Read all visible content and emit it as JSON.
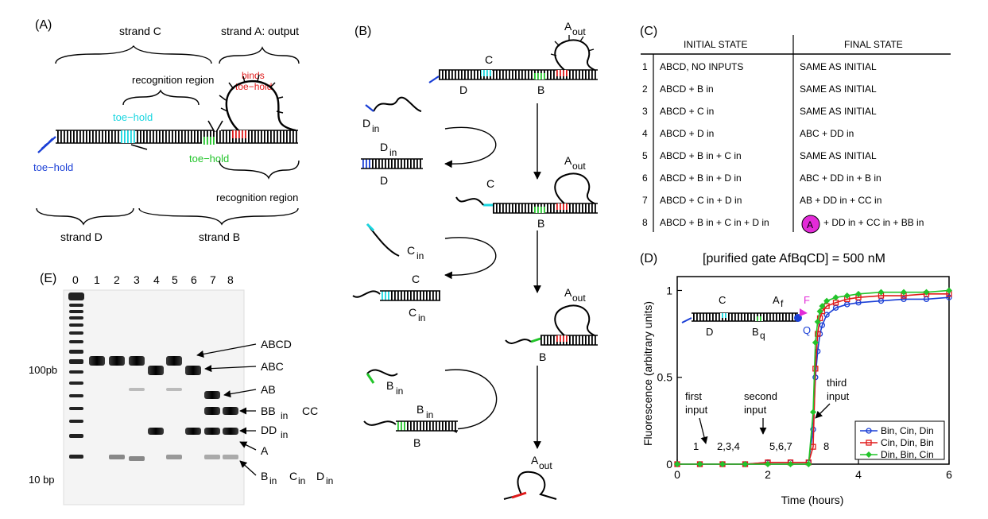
{
  "panel_a": {
    "label": "(A)",
    "strand_c": "strand C",
    "strand_a": "strand A: output",
    "recognition_top": "recognition region",
    "binds_toehold": [
      "binds",
      "toe−hold"
    ],
    "toehold_cyan": "toe−hold",
    "toehold_green": "toe−hold",
    "toehold_blue": "toe−hold",
    "recognition_bottom": "recognition region",
    "strand_d": "strand D",
    "strand_b": "strand B"
  },
  "panel_b": {
    "label": "(B)",
    "a_out": "A",
    "out_sub": "out",
    "c": "C",
    "d": "D",
    "b": "B",
    "d_in": "D",
    "c_in": "C",
    "b_in": "B",
    "in_sub": "in"
  },
  "panel_c": {
    "label": "(C)",
    "header_initial": "INITIAL STATE",
    "header_final": "FINAL STATE",
    "rows": [
      {
        "n": "1",
        "initial": "ABCD, NO INPUTS",
        "final": "SAME AS INITIAL"
      },
      {
        "n": "2",
        "initial": "ABCD  + B in",
        "final": "SAME AS INITIAL"
      },
      {
        "n": "3",
        "initial": "ABCD  + C in",
        "final": "SAME AS INITIAL"
      },
      {
        "n": "4",
        "initial": "ABCD  + D in",
        "final": "ABC  + DD in"
      },
      {
        "n": "5",
        "initial": "ABCD  + B in + C in",
        "final": "SAME AS INITIAL"
      },
      {
        "n": "6",
        "initial": "ABCD  + B in + D in",
        "final": "ABC  + DD in + B in"
      },
      {
        "n": "7",
        "initial": "ABCD  + C in + D in",
        "final": "AB    + DD in + CC in"
      },
      {
        "n": "8",
        "initial": "ABCD  + B in + C in + D in",
        "final": "+ DD in + CC in + BB in"
      }
    ],
    "circle_label": "A"
  },
  "panel_d": {
    "label": "(D)",
    "title": "[purified gate AfBqCD] = 500 nM",
    "gate_labels": {
      "c": "C",
      "a": "A",
      "a_sub": "f",
      "f": "F",
      "d": "D",
      "b": "B",
      "b_sub": "q",
      "q": "Q"
    },
    "annotations": {
      "first": [
        "first",
        "input"
      ],
      "second": [
        "second",
        "input"
      ],
      "third": [
        "third",
        "input"
      ],
      "n1": "1",
      "n234": "2,3,4",
      "n567": "5,6,7",
      "n8": "8"
    }
  },
  "panel_e": {
    "label": "(E)",
    "lanes": [
      "0",
      "1",
      "2",
      "3",
      "4",
      "5",
      "6",
      "7",
      "8"
    ],
    "marker_top": "100pb",
    "marker_bottom": "10 bp",
    "bands": [
      "ABCD",
      "ABC",
      "AB",
      "BB",
      "CC",
      "DD",
      "A",
      "B",
      "C",
      "D"
    ],
    "in_sub": "in"
  },
  "chart_data": {
    "type": "line",
    "title": "[purified gate AfBqCD] = 500 nM",
    "xlabel": "Time (hours)",
    "ylabel": "Fluorescence (arbitrary units)",
    "xlim": [
      0,
      6
    ],
    "ylim": [
      0,
      1.08
    ],
    "xticks": [
      0,
      2,
      4,
      6
    ],
    "yticks": [
      0,
      0.5,
      1
    ],
    "legend_position": "bottom-right",
    "series": [
      {
        "name": "Bin, Cin, Din",
        "color": "#1a3fd6",
        "marker": "circle",
        "x": [
          0,
          0.5,
          1,
          1.5,
          2,
          2.5,
          2.9,
          3.0,
          3.05,
          3.1,
          3.15,
          3.2,
          3.3,
          3.5,
          3.75,
          4,
          4.5,
          5,
          5.5,
          6
        ],
        "y": [
          0.0,
          0.0,
          0.0,
          0.0,
          0.01,
          0.01,
          0.01,
          0.2,
          0.5,
          0.65,
          0.75,
          0.8,
          0.86,
          0.9,
          0.92,
          0.93,
          0.94,
          0.95,
          0.95,
          0.96
        ]
      },
      {
        "name": "Cin, Din, Bin",
        "color": "#e01a1a",
        "marker": "square",
        "x": [
          0,
          0.5,
          1,
          1.5,
          2,
          2.5,
          2.9,
          3.0,
          3.05,
          3.1,
          3.15,
          3.2,
          3.3,
          3.5,
          3.75,
          4,
          4.5,
          5,
          5.5,
          6
        ],
        "y": [
          0.0,
          0.0,
          0.0,
          0.0,
          0.01,
          0.01,
          0.01,
          0.1,
          0.55,
          0.75,
          0.84,
          0.88,
          0.91,
          0.93,
          0.95,
          0.96,
          0.97,
          0.97,
          0.98,
          0.98
        ]
      },
      {
        "name": "Din, Bin, Cin",
        "color": "#22c42a",
        "marker": "diamond",
        "x": [
          0,
          0.5,
          1,
          1.5,
          2,
          2.5,
          2.9,
          3.0,
          3.05,
          3.1,
          3.15,
          3.2,
          3.3,
          3.5,
          3.75,
          4,
          4.5,
          5,
          5.5,
          6
        ],
        "y": [
          0.0,
          0.0,
          0.0,
          0.0,
          0.0,
          0.0,
          0.0,
          0.3,
          0.7,
          0.82,
          0.88,
          0.91,
          0.94,
          0.96,
          0.97,
          0.98,
          0.99,
          0.99,
          0.99,
          1.0
        ]
      }
    ]
  }
}
